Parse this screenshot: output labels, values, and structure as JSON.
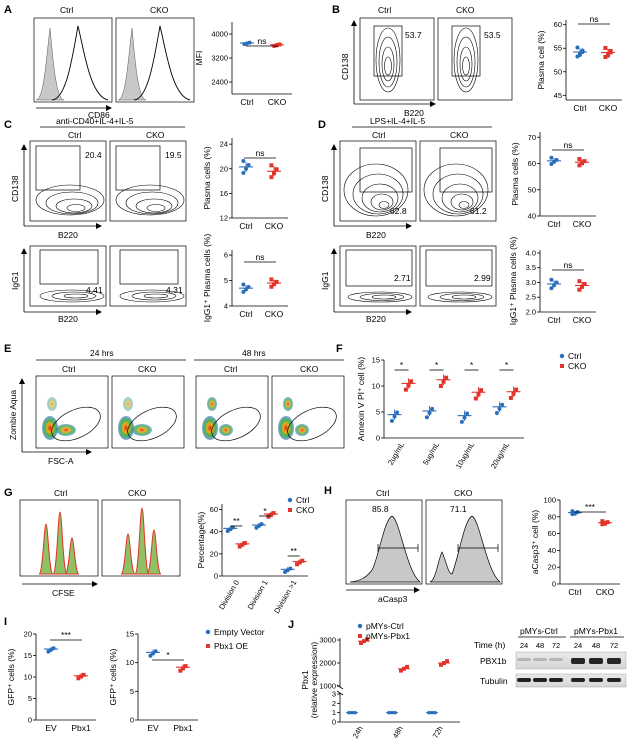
{
  "panels": {
    "A": {
      "label": "A",
      "ctrl": "Ctrl",
      "cko": "CKO",
      "xlabel": "CD86",
      "ylabel": "MFI",
      "yticks": [
        "2400",
        "3200",
        "4000"
      ],
      "xticks": [
        "Ctrl",
        "CKO"
      ],
      "sig": "ns"
    },
    "B": {
      "label": "B",
      "ctrl": "Ctrl",
      "cko": "CKO",
      "ylabel": "CD138",
      "xlabel": "B220",
      "gate_ctrl": "53.7",
      "gate_cko": "53.5",
      "chart_ylabel": "Plasma cell (%)",
      "yticks": [
        "45",
        "50",
        "55",
        "60"
      ],
      "xticks": [
        "Ctrl",
        "CKO"
      ],
      "sig": "ns"
    },
    "C": {
      "label": "C",
      "title": "anti-CD40+IL-4+IL-5",
      "ctrl": "Ctrl",
      "cko": "CKO",
      "ylabel_top": "CD138",
      "ylabel_bot": "IgG1",
      "xlabel": "B220",
      "gate_ctrl_top": "20.4",
      "gate_cko_top": "19.5",
      "gate_ctrl_bot": "4.41",
      "gate_cko_bot": "4.31",
      "chart1_ylabel": "Plasma cells (%)",
      "chart1_yticks": [
        "12",
        "16",
        "20",
        "24"
      ],
      "chart2_ylabel": "IgG1⁺ Plasma cells (%)",
      "chart2_yticks": [
        "4",
        "5",
        "6"
      ],
      "xticks": [
        "Ctrl",
        "CKO"
      ],
      "sig": "ns"
    },
    "D": {
      "label": "D",
      "title": "LPS+IL-4+IL-5",
      "ctrl": "Ctrl",
      "cko": "CKO",
      "ylabel_top": "CD138",
      "ylabel_bot": "IgG1",
      "xlabel": "B220",
      "gate_ctrl_top": "62.8",
      "gate_cko_top": "61.2",
      "gate_ctrl_bot": "2.71",
      "gate_cko_bot": "2.99",
      "chart1_ylabel": "Plasma cells (%)",
      "chart1_yticks": [
        "40",
        "50",
        "60",
        "70"
      ],
      "chart2_ylabel": "IgG1⁺ Plasma cells (%)",
      "chart2_yticks": [
        "2.0",
        "2.5",
        "3.0",
        "3.5",
        "4.0"
      ],
      "xticks": [
        "Ctrl",
        "CKO"
      ],
      "sig": "ns"
    },
    "E": {
      "label": "E",
      "t24": "24 hrs",
      "t48": "48 hrs",
      "ctrl": "Ctrl",
      "cko": "CKO",
      "ylabel": "Zombie Aqua",
      "xlabel": "FSC-A"
    },
    "F": {
      "label": "F",
      "ylabel": "Annexin V PI⁺ cell (%)",
      "yticks": [
        "0",
        "5",
        "10",
        "15"
      ],
      "xticks": [
        "2ug/mL",
        "5ug/mL",
        "10ug/mL",
        "20ug/mL"
      ],
      "legend_ctrl": "Ctrl",
      "legend_cko": "CKO",
      "sig": "*"
    },
    "G": {
      "label": "G",
      "ctrl": "Ctrl",
      "cko": "CKO",
      "xlabel": "CFSE",
      "ylabel": "Percentage(%)",
      "yticks": [
        "0",
        "20",
        "40",
        "60"
      ],
      "xticks": [
        "Division 0",
        "Division 1",
        "Division >1"
      ],
      "sig": [
        "**",
        "*",
        "**"
      ],
      "legend_ctrl": "Ctrl",
      "legend_cko": "CKO"
    },
    "H": {
      "label": "H",
      "ctrl": "Ctrl",
      "cko": "CKO",
      "xlabel": "aCasp3",
      "gate_ctrl": "85.8",
      "gate_cko": "71.1",
      "ylabel": "aCasp3⁺ cell (%)",
      "yticks": [
        "0",
        "20",
        "40",
        "60",
        "80",
        "100"
      ],
      "xticks": [
        "Ctrl",
        "CKO"
      ],
      "sig": "***"
    },
    "I": {
      "label": "I",
      "ylabel": "GFP⁺ cells (%)",
      "chart1_yticks": [
        "0",
        "5",
        "10",
        "15",
        "20"
      ],
      "chart2_yticks": [
        "0",
        "5",
        "10",
        "15"
      ],
      "xticks": [
        "EV",
        "Pbx1"
      ],
      "sig1": "***",
      "sig2": "*",
      "legend_ev": "Empty Vector",
      "legend_oe": "Pbx1 OE"
    },
    "J": {
      "label": "J",
      "ylabel": "Pbx1",
      "ylabel2": "(relative expression)",
      "yticks": [
        "0",
        "1",
        "2",
        "3",
        "1000",
        "2000",
        "3000"
      ],
      "xticks": [
        "24h",
        "48h",
        "72h"
      ],
      "legend_ctrl": "pMYs-Ctrl",
      "legend_pbx": "pMYs-Pbx1",
      "blot_ctrl": "pMYs-Ctrl",
      "blot_pbx": "pMYs-Pbx1",
      "time_label": "Time (h)",
      "times": [
        "24",
        "48",
        "72",
        "24",
        "48",
        "72"
      ],
      "band1": "PBX1b",
      "band2": "Tubulin"
    }
  },
  "colors": {
    "ctrl": "#2a6ebb",
    "cko": "#e2342b",
    "hist_fill": "#c8c8c8"
  },
  "chart_data": [
    {
      "id": "A",
      "type": "scatter",
      "categories": [
        "Ctrl",
        "CKO"
      ],
      "ylabel": "MFI",
      "ylim": [
        2000,
        4400
      ],
      "series": [
        {
          "values": [
            3700,
            3640
          ]
        }
      ],
      "annotation": "ns"
    },
    {
      "id": "B",
      "type": "scatter",
      "categories": [
        "Ctrl",
        "CKO"
      ],
      "ylabel": "Plasma cell (%)",
      "ylim": [
        44,
        61
      ],
      "series": [
        {
          "values": [
            54.2,
            54.1
          ]
        }
      ],
      "annotation": "ns"
    },
    {
      "id": "C1",
      "type": "scatter",
      "categories": [
        "Ctrl",
        "CKO"
      ],
      "ylabel": "Plasma cells (%)",
      "ylim": [
        12,
        25
      ],
      "series": [
        {
          "values": [
            20.3,
            19.6
          ]
        }
      ],
      "annotation": "ns"
    },
    {
      "id": "C2",
      "type": "scatter",
      "categories": [
        "Ctrl",
        "CKO"
      ],
      "ylabel": "IgG1⁺ Plasma cells (%)",
      "ylim": [
        4,
        6.2
      ],
      "series": [
        {
          "values": [
            4.7,
            4.9
          ]
        }
      ],
      "annotation": "ns"
    },
    {
      "id": "D1",
      "type": "scatter",
      "categories": [
        "Ctrl",
        "CKO"
      ],
      "ylabel": "Plasma cells (%)",
      "ylim": [
        40,
        72
      ],
      "series": [
        {
          "values": [
            61,
            60.5
          ]
        }
      ],
      "annotation": "ns"
    },
    {
      "id": "D2",
      "type": "scatter",
      "categories": [
        "Ctrl",
        "CKO"
      ],
      "ylabel": "IgG1⁺ Plasma cells (%)",
      "ylim": [
        2,
        4.1
      ],
      "series": [
        {
          "values": [
            2.95,
            2.9
          ]
        }
      ],
      "annotation": "ns"
    },
    {
      "id": "F",
      "type": "scatter",
      "categories": [
        "2ug/mL",
        "5ug/mL",
        "10ug/mL",
        "20ug/mL"
      ],
      "ylabel": "Annexin V PI⁺ cell (%)",
      "ylim": [
        0,
        15
      ],
      "series": [
        {
          "name": "Ctrl",
          "values": [
            4.5,
            5.2,
            4.3,
            6.0
          ]
        },
        {
          "name": "CKO",
          "values": [
            10.5,
            11.2,
            8.8,
            8.9
          ]
        }
      ]
    },
    {
      "id": "G",
      "type": "scatter",
      "categories": [
        "Division 0",
        "Division 1",
        "Division >1"
      ],
      "ylabel": "Percentage(%)",
      "ylim": [
        0,
        65
      ],
      "series": [
        {
          "name": "Ctrl",
          "values": [
            43,
            46,
            6
          ]
        },
        {
          "name": "CKO",
          "values": [
            29,
            56,
            13
          ]
        }
      ]
    },
    {
      "id": "H",
      "type": "scatter",
      "categories": [
        "Ctrl",
        "CKO"
      ],
      "ylabel": "aCasp3⁺ cell (%)",
      "ylim": [
        0,
        100
      ],
      "series": [
        {
          "values": [
            85,
            73
          ]
        }
      ],
      "annotation": "***"
    },
    {
      "id": "I1",
      "type": "scatter",
      "categories": [
        "EV",
        "Pbx1"
      ],
      "ylabel": "GFP⁺ cells (%)",
      "ylim": [
        0,
        20
      ],
      "series": [
        {
          "name": "Empty Vector",
          "values": [
            16.5
          ]
        },
        {
          "name": "Pbx1 OE",
          "values": [
            10.3
          ]
        }
      ],
      "annotation": "***"
    },
    {
      "id": "I2",
      "type": "scatter",
      "categories": [
        "EV",
        "Pbx1"
      ],
      "ylabel": "GFP⁺ cells (%)",
      "ylim": [
        0,
        15
      ],
      "series": [
        {
          "name": "Empty Vector",
          "values": [
            11.8
          ]
        },
        {
          "name": "Pbx1 OE",
          "values": [
            9.2
          ]
        }
      ],
      "annotation": "*"
    },
    {
      "id": "J",
      "type": "scatter",
      "categories": [
        "24h",
        "48h",
        "72h"
      ],
      "ylabel": "Pbx1 (relative expression)",
      "series": [
        {
          "name": "pMYs-Ctrl",
          "values": [
            1,
            1,
            1
          ]
        },
        {
          "name": "pMYs-Pbx1",
          "values": [
            2950,
            1750,
            2000
          ]
        }
      ]
    }
  ]
}
